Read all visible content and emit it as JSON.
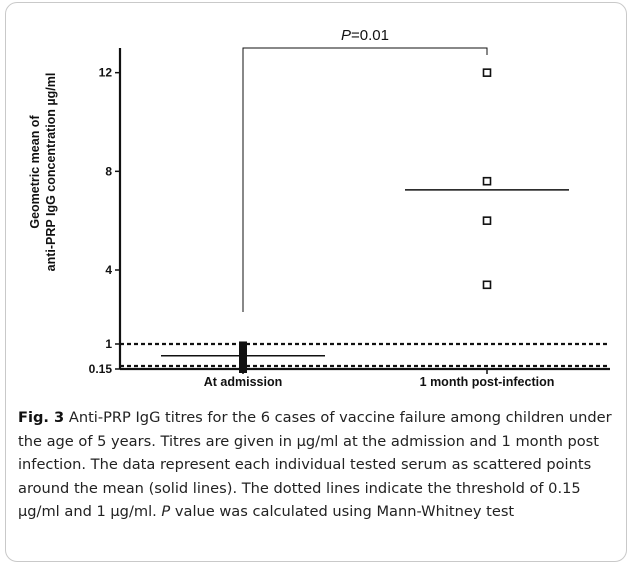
{
  "chart_data": {
    "type": "scatter",
    "ylabel_line1": "Geometric mean of",
    "ylabel_line2": "anti-PRP IgG concentration µg/ml",
    "y_ticks": [
      {
        "value": 0.15,
        "label": "0.15"
      },
      {
        "value": 1,
        "label": "1"
      },
      {
        "value": 4,
        "label": "4"
      },
      {
        "value": 8,
        "label": "8"
      },
      {
        "value": 12,
        "label": "12"
      }
    ],
    "ylim": [
      0.15,
      13.0
    ],
    "categories": [
      "At admission",
      "1 month post-infection"
    ],
    "series": [
      {
        "category": "At admission",
        "points": [
          0.15,
          0.3,
          0.5,
          0.65,
          0.8,
          0.95
        ],
        "mean": 0.6,
        "marker": "filled-square"
      },
      {
        "category": "1 month post-infection",
        "points": [
          3.4,
          6.0,
          7.6,
          12.0
        ],
        "mean": 7.25,
        "marker": "open-square"
      }
    ],
    "thresholds": [
      0.15,
      1
    ],
    "threshold_style": "dotted",
    "annotation_prefix": "P",
    "annotation_value": "=0.01",
    "grid": false
  },
  "caption": {
    "fig_label": "Fig. 3",
    "text_a": " Anti-PRP IgG titres for the 6 cases of vaccine failure among children under the age of 5 years. Titres are given in µg/ml at the admission and 1 month post infection. The data represent each individual tested serum as scattered points around the mean (solid lines). The dotted lines indicate the threshold of 0.15 µg/ml and 1 µg/ml. ",
    "text_p": "P",
    "text_b": " value was calculated using Mann-Whitney test"
  }
}
